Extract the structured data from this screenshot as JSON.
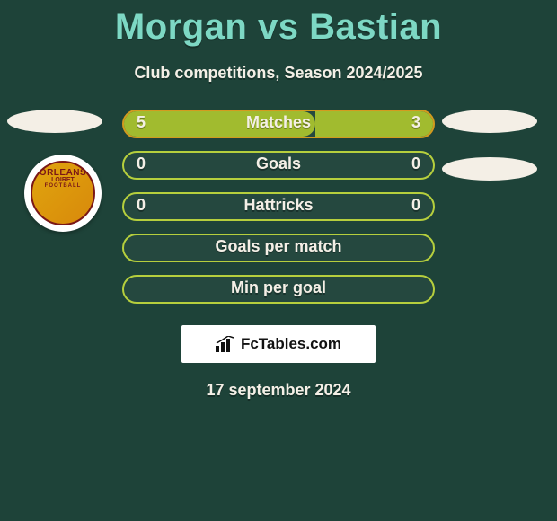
{
  "title": "Morgan vs Bastian",
  "subtitle": "Club competitions, Season 2024/2025",
  "date": "17 september 2024",
  "brand": {
    "prefix_icon": "bar-chart-icon",
    "name": "FcTables.com"
  },
  "club_badge": {
    "line1": "ORLEANS",
    "line2": "LOIRET",
    "line3": "FOOTBALL"
  },
  "colors": {
    "accent_green": "#b6cf3d",
    "accent_amber": "#d39a1e",
    "bar_fill_green": "#a1bb2f",
    "chip": "#f4efe6"
  },
  "rows": [
    {
      "label": "Matches",
      "left": "5",
      "right": "3",
      "left_pct": 62,
      "right_pct": 38,
      "has_values": true
    },
    {
      "label": "Goals",
      "left": "0",
      "right": "0",
      "left_pct": 0,
      "right_pct": 0,
      "has_values": true
    },
    {
      "label": "Hattricks",
      "left": "0",
      "right": "0",
      "left_pct": 0,
      "right_pct": 0,
      "has_values": true
    },
    {
      "label": "Goals per match",
      "left": "",
      "right": "",
      "left_pct": 0,
      "right_pct": 0,
      "has_values": false
    },
    {
      "label": "Min per goal",
      "left": "",
      "right": "",
      "left_pct": 0,
      "right_pct": 0,
      "has_values": false
    }
  ]
}
